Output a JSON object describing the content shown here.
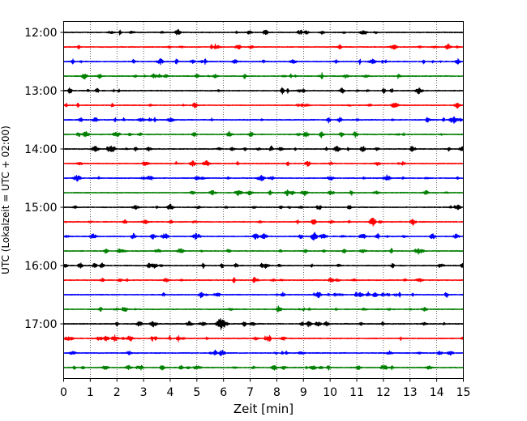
{
  "chart_data": {
    "type": "line",
    "title": "",
    "xlabel": "Zeit  [min]",
    "ylabel": "UTC (Lokalzeit = UTC + 02:00)",
    "xlim": [
      0,
      15
    ],
    "x_ticks": [
      "0",
      "1",
      "2",
      "3",
      "4",
      "5",
      "6",
      "7",
      "8",
      "9",
      "10",
      "11",
      "12",
      "13",
      "14",
      "15"
    ],
    "y_ticks": [
      "12:00",
      "13:00",
      "14:00",
      "15:00",
      "16:00",
      "17:00"
    ],
    "grid": "vertical dotted lines at each minute",
    "trace_interval_minutes": 15,
    "trace_colors": [
      "#000000",
      "#ff0000",
      "#0000ff",
      "#008000"
    ],
    "series": [
      {
        "start": "12:00",
        "color": "#000000"
      },
      {
        "start": "12:15",
        "color": "#ff0000"
      },
      {
        "start": "12:30",
        "color": "#0000ff"
      },
      {
        "start": "12:45",
        "color": "#008000"
      },
      {
        "start": "13:00",
        "color": "#000000"
      },
      {
        "start": "13:15",
        "color": "#ff0000"
      },
      {
        "start": "13:30",
        "color": "#0000ff"
      },
      {
        "start": "13:45",
        "color": "#008000"
      },
      {
        "start": "14:00",
        "color": "#000000"
      },
      {
        "start": "14:15",
        "color": "#ff0000"
      },
      {
        "start": "14:30",
        "color": "#0000ff"
      },
      {
        "start": "14:45",
        "color": "#008000"
      },
      {
        "start": "15:00",
        "color": "#000000"
      },
      {
        "start": "15:15",
        "color": "#ff0000"
      },
      {
        "start": "15:30",
        "color": "#0000ff"
      },
      {
        "start": "15:45",
        "color": "#008000"
      },
      {
        "start": "16:00",
        "color": "#000000"
      },
      {
        "start": "16:15",
        "color": "#ff0000"
      },
      {
        "start": "16:30",
        "color": "#0000ff"
      },
      {
        "start": "16:45",
        "color": "#008000"
      },
      {
        "start": "17:00",
        "color": "#000000"
      },
      {
        "start": "17:15",
        "color": "#ff0000"
      },
      {
        "start": "17:30",
        "color": "#0000ff"
      },
      {
        "start": "17:45",
        "color": "#008000"
      }
    ],
    "notable_events": [
      {
        "trace": "17:00",
        "minute": 5.9,
        "amplitude": "large"
      },
      {
        "trace": "15:15",
        "minute": 11.6,
        "amplitude": "medium"
      },
      {
        "trace": "15:30",
        "minute": 9.4,
        "amplitude": "medium"
      }
    ]
  }
}
